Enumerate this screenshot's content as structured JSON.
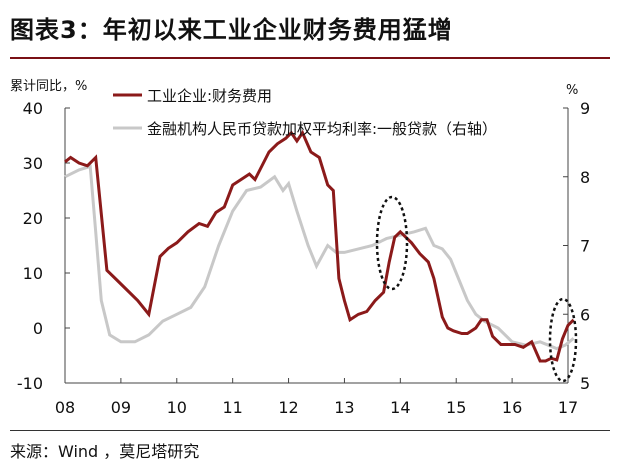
{
  "title": "图表3：年初以来工业企业财务费用猛增",
  "source": "来源：Wind ，莫尼塔研究",
  "colors": {
    "series1": "#8b1a1a",
    "series2": "#c8c8c8",
    "rule": "#7a1015"
  },
  "chart_data": {
    "type": "line",
    "left_axis_unit": "累计同比，%",
    "right_axis_unit": "%",
    "ylim_left": [
      -10,
      40
    ],
    "ylim_right": [
      5,
      9
    ],
    "yticks_left": [
      "40",
      "30",
      "20",
      "10",
      "0",
      "-10"
    ],
    "yticks_right": [
      "9",
      "8",
      "7",
      "6",
      "5"
    ],
    "xlim": [
      2008,
      2017
    ],
    "xticks": [
      "08",
      "09",
      "10",
      "11",
      "12",
      "13",
      "14",
      "15",
      "16",
      "17"
    ],
    "grid": false,
    "legend": "top",
    "series": [
      {
        "name": "工业企业:财务费用",
        "axis": "left",
        "points": [
          [
            2008.0,
            30.2
          ],
          [
            2008.1,
            31
          ],
          [
            2008.25,
            30
          ],
          [
            2008.4,
            29.5
          ],
          [
            2008.55,
            31
          ],
          [
            2008.75,
            10.5
          ],
          [
            2008.9,
            9
          ],
          [
            2009.1,
            7
          ],
          [
            2009.3,
            5
          ],
          [
            2009.5,
            2.5
          ],
          [
            2009.7,
            13
          ],
          [
            2009.85,
            14.5
          ],
          [
            2010.0,
            15.5
          ],
          [
            2010.2,
            17.5
          ],
          [
            2010.4,
            19
          ],
          [
            2010.55,
            18.5
          ],
          [
            2010.7,
            21
          ],
          [
            2010.85,
            22
          ],
          [
            2011.0,
            26
          ],
          [
            2011.15,
            27
          ],
          [
            2011.3,
            28
          ],
          [
            2011.4,
            27
          ],
          [
            2011.5,
            29
          ],
          [
            2011.65,
            32
          ],
          [
            2011.8,
            33.5
          ],
          [
            2011.95,
            34.5
          ],
          [
            2012.05,
            35.5
          ],
          [
            2012.15,
            34
          ],
          [
            2012.25,
            35.5
          ],
          [
            2012.4,
            32
          ],
          [
            2012.55,
            31
          ],
          [
            2012.7,
            26
          ],
          [
            2012.8,
            25
          ],
          [
            2012.9,
            9
          ],
          [
            2013.0,
            5
          ],
          [
            2013.1,
            1.5
          ],
          [
            2013.25,
            2.5
          ],
          [
            2013.4,
            3
          ],
          [
            2013.55,
            5
          ],
          [
            2013.7,
            6.5
          ],
          [
            2013.8,
            12
          ],
          [
            2013.9,
            16.5
          ],
          [
            2014.0,
            17.5
          ],
          [
            2014.1,
            16.5
          ],
          [
            2014.2,
            15.5
          ],
          [
            2014.35,
            13.5
          ],
          [
            2014.5,
            12
          ],
          [
            2014.6,
            9
          ],
          [
            2014.75,
            2
          ],
          [
            2014.85,
            0
          ],
          [
            2014.95,
            -0.5
          ],
          [
            2015.1,
            -1
          ],
          [
            2015.2,
            -1
          ],
          [
            2015.35,
            0
          ],
          [
            2015.45,
            1.5
          ],
          [
            2015.55,
            1.5
          ],
          [
            2015.65,
            -1.5
          ],
          [
            2015.8,
            -3
          ],
          [
            2015.95,
            -3
          ],
          [
            2016.05,
            -3
          ],
          [
            2016.2,
            -3.5
          ],
          [
            2016.35,
            -2.5
          ],
          [
            2016.5,
            -6
          ],
          [
            2016.6,
            -6
          ],
          [
            2016.7,
            -5.5
          ],
          [
            2016.8,
            -5.8
          ],
          [
            2016.9,
            -2
          ],
          [
            2017.0,
            0.5
          ],
          [
            2017.1,
            1.5
          ]
        ]
      },
      {
        "name": "金融机构人民币贷款加权平均利率:一般贷款（右轴）",
        "axis": "right",
        "points": [
          [
            2008.0,
            8.0
          ],
          [
            2008.25,
            8.1
          ],
          [
            2008.45,
            8.15
          ],
          [
            2008.55,
            7.2
          ],
          [
            2008.65,
            6.2
          ],
          [
            2008.8,
            5.7
          ],
          [
            2009.0,
            5.6
          ],
          [
            2009.25,
            5.6
          ],
          [
            2009.5,
            5.7
          ],
          [
            2009.75,
            5.9
          ],
          [
            2010.0,
            6.0
          ],
          [
            2010.25,
            6.1
          ],
          [
            2010.5,
            6.4
          ],
          [
            2010.75,
            7.0
          ],
          [
            2011.0,
            7.5
          ],
          [
            2011.25,
            7.8
          ],
          [
            2011.5,
            7.85
          ],
          [
            2011.75,
            8.0
          ],
          [
            2011.9,
            7.8
          ],
          [
            2012.0,
            7.9
          ],
          [
            2012.15,
            7.5
          ],
          [
            2012.35,
            7.0
          ],
          [
            2012.5,
            6.7
          ],
          [
            2012.7,
            7.0
          ],
          [
            2012.85,
            6.9
          ],
          [
            2013.0,
            6.9
          ],
          [
            2013.25,
            6.95
          ],
          [
            2013.5,
            7.0
          ],
          [
            2013.75,
            7.1
          ],
          [
            2014.0,
            7.15
          ],
          [
            2014.25,
            7.2
          ],
          [
            2014.45,
            7.25
          ],
          [
            2014.6,
            7.0
          ],
          [
            2014.75,
            6.95
          ],
          [
            2014.9,
            6.8
          ],
          [
            2015.0,
            6.6
          ],
          [
            2015.2,
            6.2
          ],
          [
            2015.35,
            6.0
          ],
          [
            2015.5,
            5.9
          ],
          [
            2015.75,
            5.8
          ],
          [
            2016.0,
            5.6
          ],
          [
            2016.25,
            5.55
          ],
          [
            2016.5,
            5.6
          ],
          [
            2016.65,
            5.55
          ],
          [
            2016.8,
            5.5
          ],
          [
            2016.95,
            5.55
          ],
          [
            2017.1,
            5.65
          ]
        ]
      }
    ],
    "annotations": [
      "dotted-ellipse-2014",
      "dotted-ellipse-2017"
    ]
  }
}
